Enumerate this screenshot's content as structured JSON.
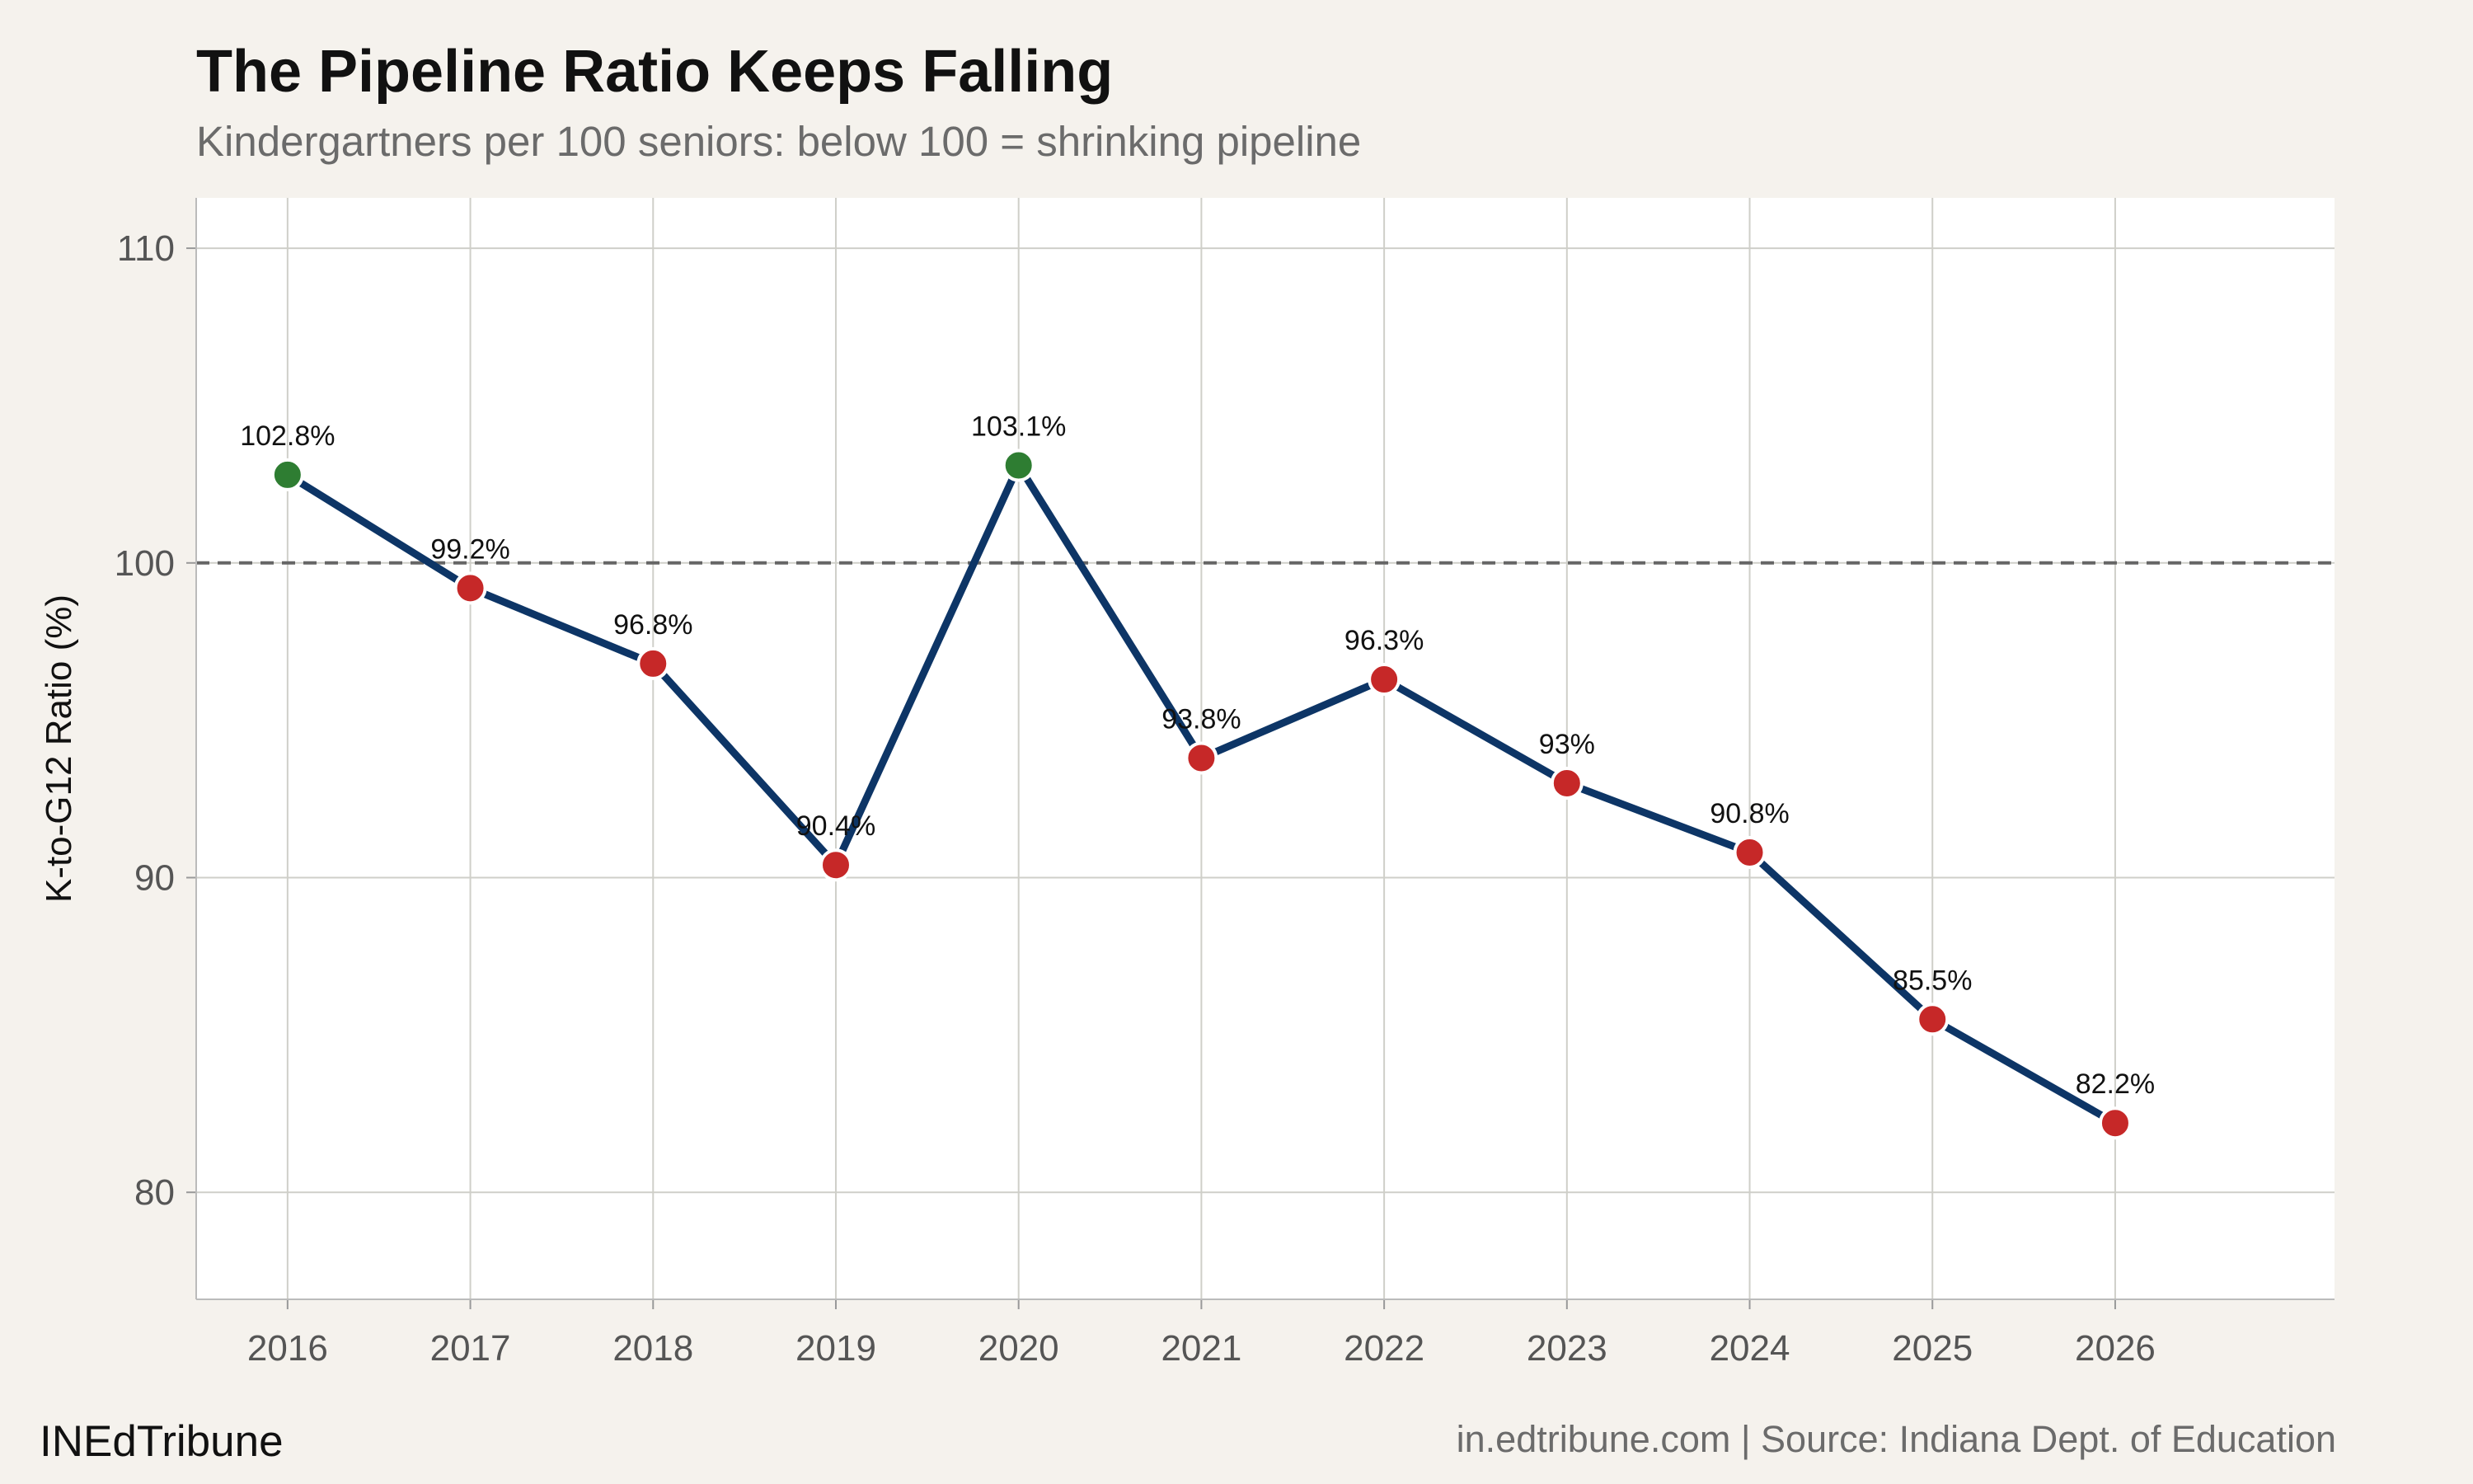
{
  "header": {
    "title": "The Pipeline Ratio Keeps Falling",
    "subtitle": "Kindergartners per 100 seniors: below 100 = shrinking pipeline"
  },
  "footer": {
    "brand": "INEdTribune",
    "source": "in.edtribune.com | Source: Indiana Dept. of Education"
  },
  "chart_data": {
    "type": "line",
    "title": "The Pipeline Ratio Keeps Falling",
    "subtitle": "Kindergartners per 100 seniors: below 100 = shrinking pipeline",
    "xlabel": "",
    "ylabel": "K-to-G12 Ratio (%)",
    "x": [
      2016,
      2017,
      2018,
      2019,
      2020,
      2021,
      2022,
      2023,
      2024,
      2025,
      2026
    ],
    "series": [
      {
        "values": [
          102.8,
          99.2,
          96.8,
          90.4,
          103.1,
          93.8,
          96.3,
          93.0,
          90.8,
          85.5,
          82.2
        ],
        "labels": [
          "102.8%",
          "99.2%",
          "96.8%",
          "90.4%",
          "103.1%",
          "93.8%",
          "96.3%",
          "93%",
          "90.8%",
          "85.5%",
          "82.2%"
        ]
      }
    ],
    "reference_line": 100,
    "xlim": [
      2015.5,
      2027.2
    ],
    "ylim": [
      76.6,
      111.6
    ],
    "yticks": [
      80,
      90,
      100,
      110
    ],
    "xticks": [
      2016,
      2017,
      2018,
      2019,
      2020,
      2021,
      2022,
      2023,
      2024,
      2025,
      2026
    ],
    "grid": true,
    "legend": "none",
    "colors": {
      "line": "#0d3566",
      "above_100": "#2e7d32",
      "below_100": "#c62828",
      "reference": "#666666",
      "panel": "#ffffff",
      "grid": "#cfcfc9"
    }
  }
}
